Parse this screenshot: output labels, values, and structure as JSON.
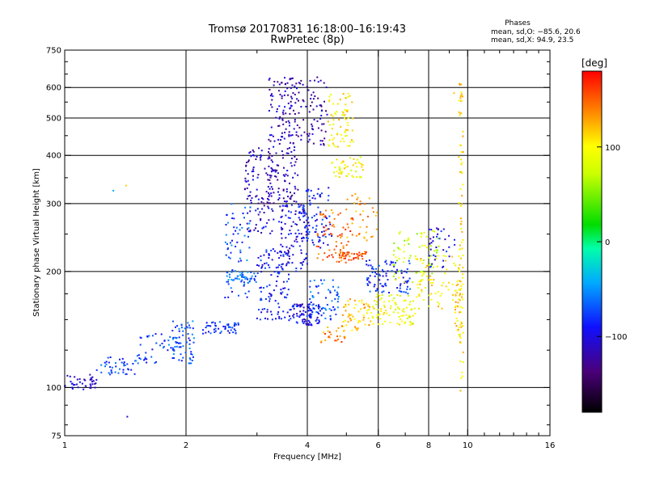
{
  "chart_data": {
    "type": "scatter",
    "title": "Tromsø 20170831 16:18:00–16:19:43",
    "subtitle": "RwPretec (8p)",
    "xlabel": "Frequency [MHz]",
    "ylabel": "Stationary phase Virtual Height [km]",
    "x_scale": "log",
    "y_scale": "log",
    "xlim": [
      1,
      16
    ],
    "ylim": [
      75,
      750
    ],
    "x_ticks": [
      1,
      2,
      4,
      6,
      8,
      10,
      16
    ],
    "x_tick_labels": [
      "1",
      "2",
      "4",
      "6",
      "8",
      "10",
      "16"
    ],
    "y_ticks": [
      75,
      100,
      200,
      300,
      400,
      500,
      600,
      750
    ],
    "y_tick_labels": [
      "75",
      "100",
      "200",
      "300",
      "400",
      "500",
      "600",
      "750"
    ],
    "x_gridlines": [
      2,
      4,
      6,
      8,
      10
    ],
    "y_gridlines": [
      100,
      200,
      300,
      400,
      500,
      600
    ],
    "grid": true,
    "info": {
      "heading": "Phases",
      "line_o": "mean, sd,O: −85.6, 20.6",
      "line_x": "mean, sd,X: 94.9, 23.5"
    },
    "colorbar": {
      "label": "[deg]",
      "range": [
        -180,
        180
      ],
      "tick_values": [
        100,
        0,
        -100
      ],
      "tick_labels": [
        "100",
        "0",
        "−100"
      ]
    },
    "clusters": [
      {
        "x": [
          1.0,
          1.2
        ],
        "y": [
          98,
          108
        ],
        "phase": -105,
        "n": 40
      },
      {
        "x": [
          1.2,
          1.5
        ],
        "y": [
          108,
          120
        ],
        "phase": -80,
        "n": 40
      },
      {
        "x": [
          1.5,
          1.9
        ],
        "y": [
          115,
          140
        ],
        "phase": -75,
        "n": 45
      },
      {
        "x": [
          1.85,
          2.1
        ],
        "y": [
          115,
          150
        ],
        "phase": -70,
        "n": 60
      },
      {
        "x": [
          2.2,
          2.7
        ],
        "y": [
          138,
          148
        ],
        "phase": -85,
        "n": 50
      },
      {
        "x": [
          2.5,
          2.9
        ],
        "y": [
          170,
          300
        ],
        "phase": -70,
        "n": 70
      },
      {
        "x": [
          2.5,
          3.0
        ],
        "y": [
          185,
          200
        ],
        "phase": -60,
        "n": 40
      },
      {
        "x": [
          2.8,
          3.3
        ],
        "y": [
          250,
          420
        ],
        "phase": -110,
        "n": 110
      },
      {
        "x": [
          3.0,
          3.6
        ],
        "y": [
          150,
          230
        ],
        "phase": -90,
        "n": 110
      },
      {
        "x": [
          3.2,
          3.8
        ],
        "y": [
          300,
          640
        ],
        "phase": -115,
        "n": 190
      },
      {
        "x": [
          3.4,
          4.0
        ],
        "y": [
          200,
          300
        ],
        "phase": -100,
        "n": 110
      },
      {
        "x": [
          3.6,
          4.3
        ],
        "y": [
          145,
          165
        ],
        "phase": -95,
        "n": 90
      },
      {
        "x": [
          3.8,
          4.5
        ],
        "y": [
          420,
          640
        ],
        "phase": -120,
        "n": 70
      },
      {
        "x": [
          3.9,
          4.6
        ],
        "y": [
          230,
          330
        ],
        "phase": -90,
        "n": 80
      },
      {
        "x": [
          4.0,
          4.8
        ],
        "y": [
          150,
          190
        ],
        "phase": -70,
        "n": 60
      },
      {
        "x": [
          4.2,
          5.2
        ],
        "y": [
          210,
          290
        ],
        "phase": 150,
        "n": 70
      },
      {
        "x": [
          4.3,
          5.0
        ],
        "y": [
          130,
          145
        ],
        "phase": 140,
        "n": 25
      },
      {
        "x": [
          4.5,
          5.2
        ],
        "y": [
          420,
          580
        ],
        "phase": 105,
        "n": 70
      },
      {
        "x": [
          4.6,
          5.5
        ],
        "y": [
          350,
          400
        ],
        "phase": 95,
        "n": 50
      },
      {
        "x": [
          4.8,
          5.6
        ],
        "y": [
          215,
          225
        ],
        "phase": 155,
        "n": 40
      },
      {
        "x": [
          4.9,
          5.8
        ],
        "y": [
          140,
          170
        ],
        "phase": 120,
        "n": 60
      },
      {
        "x": [
          5.0,
          6.0
        ],
        "y": [
          240,
          320
        ],
        "phase": 130,
        "n": 35
      },
      {
        "x": [
          5.6,
          7.2
        ],
        "y": [
          175,
          215
        ],
        "phase": -85,
        "n": 90
      },
      {
        "x": [
          5.8,
          7.5
        ],
        "y": [
          145,
          175
        ],
        "phase": 90,
        "n": 90
      },
      {
        "x": [
          6.5,
          8.5
        ],
        "y": [
          185,
          260
        ],
        "phase": 75,
        "n": 70
      },
      {
        "x": [
          7.5,
          9.5
        ],
        "y": [
          160,
          220
        ],
        "phase": 105,
        "n": 70
      },
      {
        "x": [
          8.0,
          9.3
        ],
        "y": [
          200,
          260
        ],
        "phase": -95,
        "n": 35
      },
      {
        "x": [
          9.5,
          9.75
        ],
        "y": [
          95,
          640
        ],
        "phase": 108,
        "n": 90
      },
      {
        "x": [
          9.3,
          9.6
        ],
        "y": [
          140,
          180
        ],
        "phase": 115,
        "n": 20
      }
    ],
    "outliers": [
      {
        "x": 1.43,
        "y": 84,
        "phase": -110
      },
      {
        "x": 1.42,
        "y": 334,
        "phase": 115
      },
      {
        "x": 1.32,
        "y": 324,
        "phase": -40
      },
      {
        "x": 9.25,
        "y": 580,
        "phase": 120
      }
    ]
  }
}
